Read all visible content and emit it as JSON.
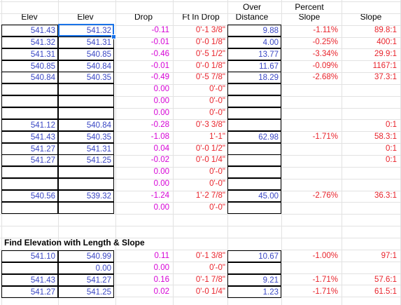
{
  "headers": {
    "elev1": "Elev",
    "elev2": "Elev",
    "drop": "Drop",
    "ftin": "Ft In Drop",
    "over": "Over",
    "distance": "Distance",
    "percent": "Percent",
    "slope_pct": "Slope",
    "slope": "Slope"
  },
  "rows": [
    {
      "e1": "541.43",
      "e2": "541.32",
      "drop": "-0.11",
      "ftin": "0'-1 3/8\"",
      "dist": "9.88",
      "pct": "-1.11%",
      "slope": "89.8:1"
    },
    {
      "e1": "541.32",
      "e2": "541.31",
      "drop": "-0.01",
      "ftin": "0'-0 1/8\"",
      "dist": "4.00",
      "pct": "-0.25%",
      "slope": "400:1"
    },
    {
      "e1": "541.31",
      "e2": "540.85",
      "drop": "-0.46",
      "ftin": "0'-5 1/2\"",
      "dist": "13.77",
      "pct": "-3.34%",
      "slope": "29.9:1"
    },
    {
      "e1": "540.85",
      "e2": "540.84",
      "drop": "-0.01",
      "ftin": "0'-0 1/8\"",
      "dist": "11.67",
      "pct": "-0.09%",
      "slope": "1167:1"
    },
    {
      "e1": "540.84",
      "e2": "540.35",
      "drop": "-0.49",
      "ftin": "0'-5 7/8\"",
      "dist": "18.29",
      "pct": "-2.68%",
      "slope": "37.3:1"
    },
    {
      "e1": "",
      "e2": "",
      "drop": "0.00",
      "ftin": "0'-0\"",
      "dist": "",
      "pct": "",
      "slope": ""
    },
    {
      "e1": "",
      "e2": "",
      "drop": "0.00",
      "ftin": "0'-0\"",
      "dist": "",
      "pct": "",
      "slope": ""
    },
    {
      "e1": "",
      "e2": "",
      "drop": "0.00",
      "ftin": "0'-0\"",
      "dist": "",
      "pct": "",
      "slope": ""
    },
    {
      "e1": "541.12",
      "e2": "540.84",
      "drop": "-0.28",
      "ftin": "0'-3 3/8\"",
      "dist": "",
      "pct": "",
      "slope": "0:1"
    },
    {
      "e1": "541.43",
      "e2": "540.35",
      "drop": "-1.08",
      "ftin": "1'-1\"",
      "dist": "62.98",
      "pct": "-1.71%",
      "slope": "58.3:1"
    },
    {
      "e1": "541.27",
      "e2": "541.31",
      "drop": "0.04",
      "ftin": "0'-0 1/2\"",
      "dist": "",
      "pct": "",
      "slope": "0:1"
    },
    {
      "e1": "541.27",
      "e2": "541.25",
      "drop": "-0.02",
      "ftin": "0'-0 1/4\"",
      "dist": "",
      "pct": "",
      "slope": "0:1"
    },
    {
      "e1": "",
      "e2": "",
      "drop": "0.00",
      "ftin": "0'-0\"",
      "dist": "",
      "pct": "",
      "slope": ""
    },
    {
      "e1": "",
      "e2": "",
      "drop": "0.00",
      "ftin": "0'-0\"",
      "dist": "",
      "pct": "",
      "slope": ""
    },
    {
      "e1": "540.56",
      "e2": "539.32",
      "drop": "-1.24",
      "ftin": "1'-2 7/8\"",
      "dist": "45.00",
      "pct": "-2.76%",
      "slope": "36.3:1"
    },
    {
      "e1": "",
      "e2": "",
      "drop": "0.00",
      "ftin": "0'-0\"",
      "dist": "",
      "pct": "",
      "slope": ""
    }
  ],
  "section2": {
    "title": "Find Elevation with Length & Slope",
    "rows": [
      {
        "e1": "541.10",
        "e2": "540.99",
        "drop": "0.11",
        "ftin": "0'-1 3/8\"",
        "dist": "10.67",
        "pct": "-1.00%",
        "slope": "97:1"
      },
      {
        "e1": "",
        "e2": "0.00",
        "drop": "0.00",
        "ftin": "0'-0\"",
        "dist": "",
        "pct": "",
        "slope": ""
      },
      {
        "e1": "541.43",
        "e2": "541.27",
        "drop": "0.16",
        "ftin": "0'-1 7/8\"",
        "dist": "9.21",
        "pct": "-1.71%",
        "slope": "57.6:1"
      },
      {
        "e1": "541.27",
        "e2": "541.25",
        "drop": "0.02",
        "ftin": "0'-0 1/4\"",
        "dist": "1.23",
        "pct": "-1.71%",
        "slope": "61.5:1"
      }
    ]
  },
  "colors": {
    "blue": "#3a47c4",
    "red": "#e8232b",
    "magenta": "#d500d5",
    "selection": "#1a73e8"
  }
}
